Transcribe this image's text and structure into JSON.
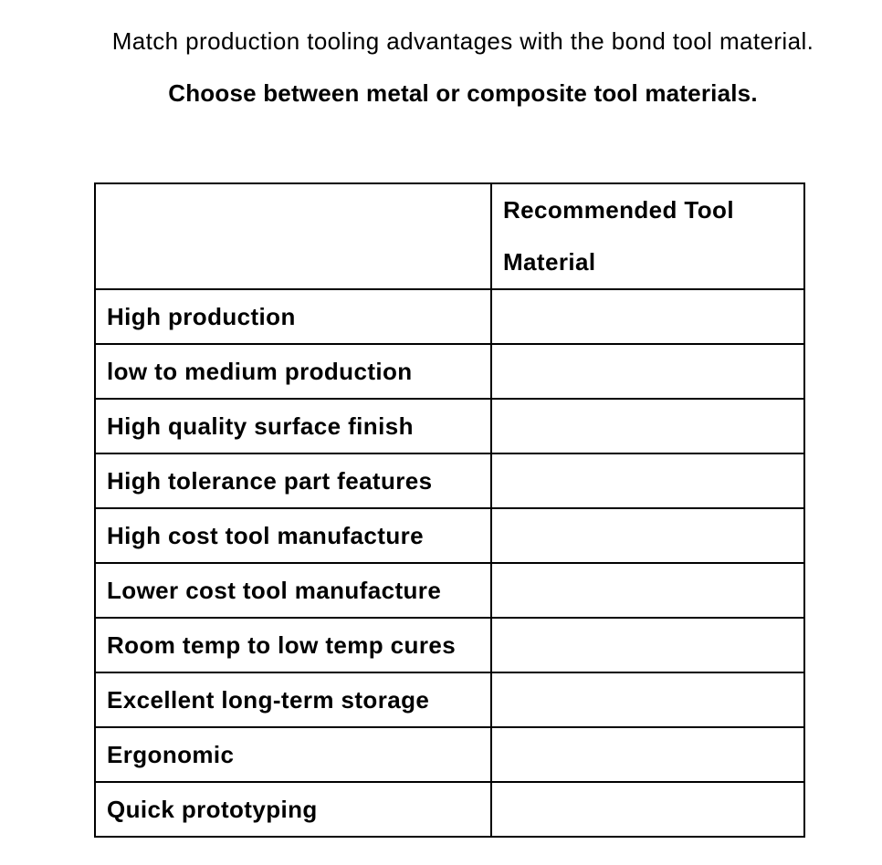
{
  "page": {
    "title": "Match production tooling advantages with the bond tool material.",
    "subtitle": "Choose between metal or composite tool materials."
  },
  "table": {
    "header": {
      "blank": "",
      "answer_column": "Recommended Tool Material"
    },
    "rows": [
      {
        "label": "High production",
        "answer": ""
      },
      {
        "label": "low to medium production",
        "answer": ""
      },
      {
        "label": "High quality surface finish",
        "answer": ""
      },
      {
        "label": "High tolerance part features",
        "answer": ""
      },
      {
        "label": "High cost tool manufacture",
        "answer": ""
      },
      {
        "label": "Lower cost tool manufacture",
        "answer": ""
      },
      {
        "label": "Room temp to low temp cures",
        "answer": ""
      },
      {
        "label": "Excellent long-term storage",
        "answer": ""
      },
      {
        "label": "Ergonomic",
        "answer": ""
      },
      {
        "label": "Quick prototyping",
        "answer": ""
      }
    ]
  },
  "colors": {
    "text": "#000000",
    "table_border": "#000000",
    "background": "#ffffff"
  }
}
